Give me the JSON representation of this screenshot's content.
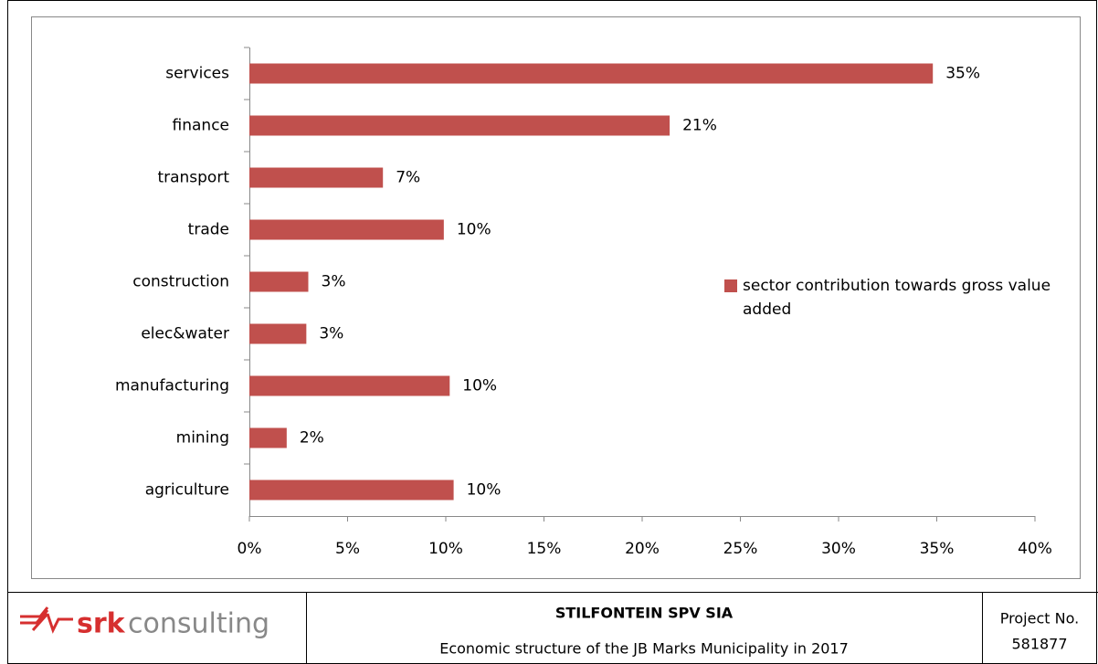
{
  "chart_data": {
    "type": "bar",
    "orientation": "horizontal",
    "categories": [
      "services",
      "finance",
      "transport",
      "trade",
      "construction",
      "elec&water",
      "manufacturing",
      "mining",
      "agriculture"
    ],
    "series": [
      {
        "name": "sector contribution towards gross value added",
        "color": "#c0504d",
        "values": [
          34.8,
          21.4,
          6.8,
          9.9,
          3.0,
          2.9,
          10.2,
          1.9,
          10.4
        ],
        "value_labels": [
          "35%",
          "21%",
          "7%",
          "10%",
          "3%",
          "3%",
          "10%",
          "2%",
          "10%"
        ]
      }
    ],
    "xlim": [
      0,
      40
    ],
    "xticks": [
      {
        "value": 0,
        "label": "0%"
      },
      {
        "value": 5,
        "label": "5%"
      },
      {
        "value": 10,
        "label": "10%"
      },
      {
        "value": 15,
        "label": "15%"
      },
      {
        "value": 20,
        "label": "20%"
      },
      {
        "value": 25,
        "label": "25%"
      },
      {
        "value": 30,
        "label": "30%"
      },
      {
        "value": 35,
        "label": "35%"
      },
      {
        "value": 40,
        "label": "40%"
      }
    ],
    "legend": "right"
  },
  "footer": {
    "logo_brand": "srk",
    "logo_text": "consulting",
    "title": "STILFONTEIN SPV SIA",
    "caption": "Economic structure of the JB Marks Municipality in 2017",
    "project_label": "Project No.",
    "project_number": "581877"
  }
}
